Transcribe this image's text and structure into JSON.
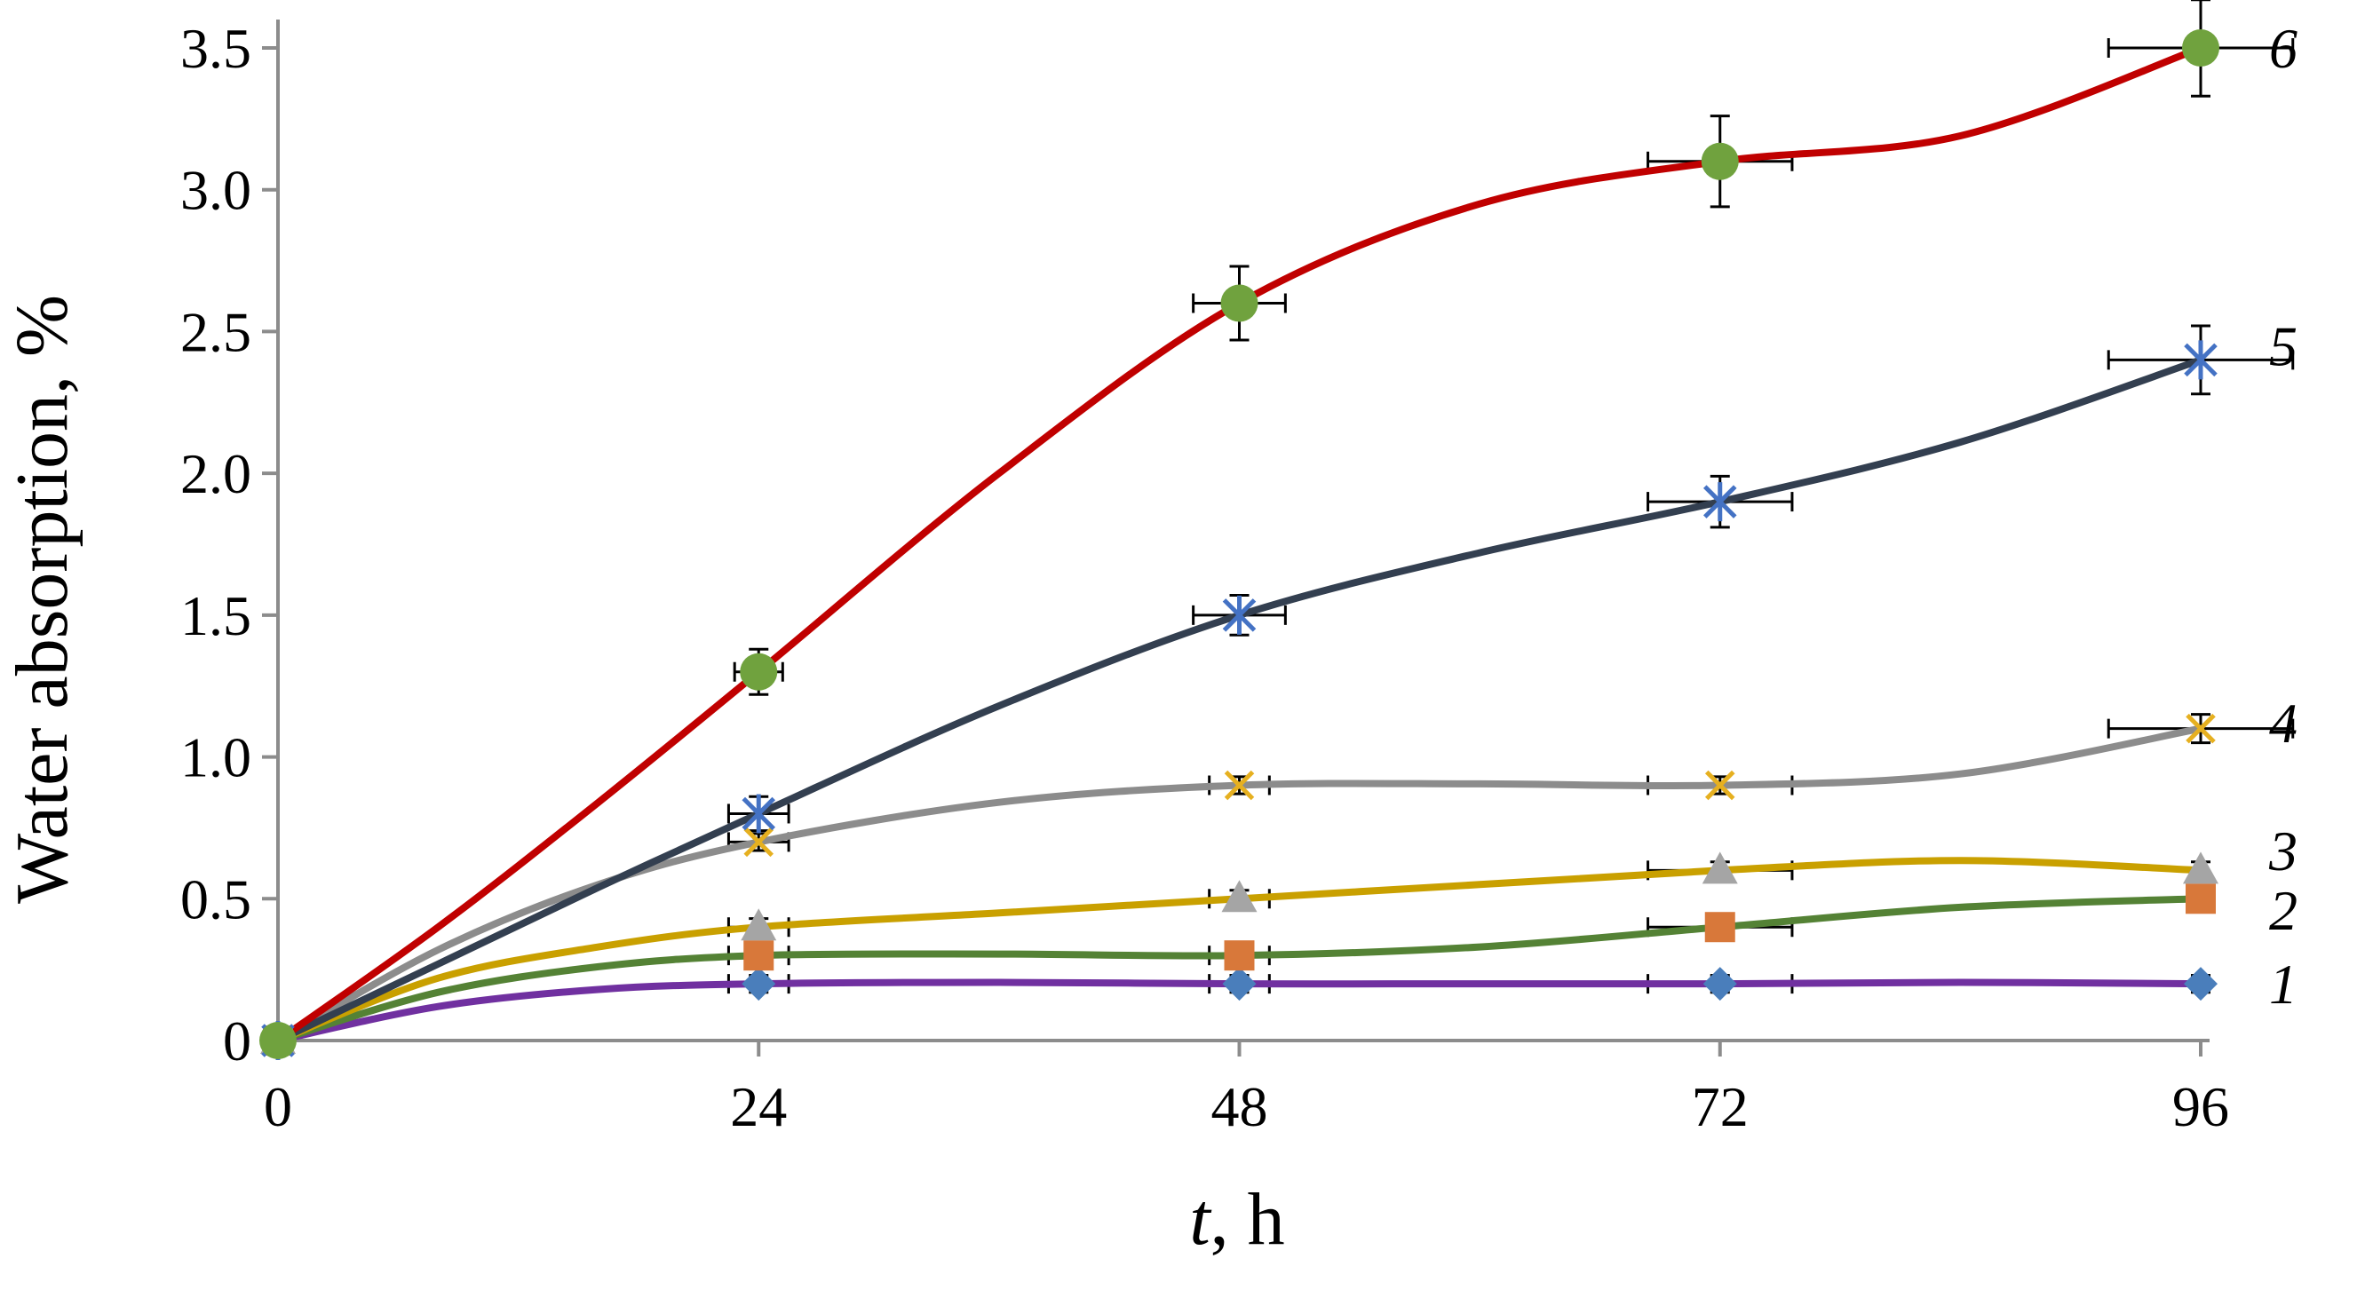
{
  "chart_data": {
    "type": "line",
    "ylabel": "Water absorption, %",
    "xlabel_italic": "t",
    "xlabel_rest": ", h",
    "x": [
      0,
      24,
      48,
      72,
      96
    ],
    "x_tick_labels": [
      "0",
      "24",
      "48",
      "72",
      "96"
    ],
    "y_tick_labels": [
      "0",
      "0.5",
      "1.0",
      "1.5",
      "2.0",
      "2.5",
      "3.0",
      "3.5"
    ],
    "xlim": [
      0,
      96
    ],
    "ylim": [
      0,
      3.5
    ],
    "grid": false,
    "series": [
      {
        "name": "1",
        "values": [
          0,
          0.2,
          0.2,
          0.2,
          0.2
        ],
        "curve": [
          [
            0,
            0
          ],
          [
            8,
            0.12
          ],
          [
            16,
            0.18
          ],
          [
            24,
            0.2
          ],
          [
            36,
            0.205
          ],
          [
            48,
            0.2
          ],
          [
            60,
            0.2
          ],
          [
            72,
            0.2
          ],
          [
            84,
            0.205
          ],
          [
            96,
            0.2
          ]
        ],
        "y_err": [
          0,
          0.03,
          0.03,
          0.03,
          0.03
        ],
        "x_err": [
          0,
          1.5,
          1.5,
          3.6,
          0
        ],
        "marker": "diamond",
        "marker_color": "#4a7ebb",
        "line_color": "#7030a0"
      },
      {
        "name": "2",
        "values": [
          0,
          0.3,
          0.3,
          0.4,
          0.5
        ],
        "curve": [
          [
            0,
            0
          ],
          [
            8,
            0.17
          ],
          [
            16,
            0.26
          ],
          [
            24,
            0.3
          ],
          [
            36,
            0.305
          ],
          [
            48,
            0.3
          ],
          [
            60,
            0.33
          ],
          [
            72,
            0.4
          ],
          [
            84,
            0.47
          ],
          [
            96,
            0.5
          ]
        ],
        "y_err": [
          0,
          0.03,
          0.03,
          0.03,
          0.03
        ],
        "x_err": [
          0,
          1.5,
          1.5,
          3.6,
          0
        ],
        "marker": "square",
        "marker_color": "#d8783a",
        "line_color": "#548235"
      },
      {
        "name": "3",
        "values": [
          0,
          0.4,
          0.5,
          0.6,
          0.6
        ],
        "curve": [
          [
            0,
            0
          ],
          [
            8,
            0.22
          ],
          [
            16,
            0.33
          ],
          [
            24,
            0.4
          ],
          [
            36,
            0.45
          ],
          [
            48,
            0.5
          ],
          [
            60,
            0.55
          ],
          [
            72,
            0.6
          ],
          [
            84,
            0.635
          ],
          [
            96,
            0.6
          ]
        ],
        "y_err": [
          0,
          0.03,
          0.03,
          0.03,
          0.03
        ],
        "x_err": [
          0,
          1.5,
          1.5,
          3.6,
          0
        ],
        "marker": "triangle",
        "marker_color": "#a5a5a5",
        "line_color": "#c9a000"
      },
      {
        "name": "4",
        "values": [
          0,
          0.7,
          0.9,
          0.9,
          1.1
        ],
        "curve": [
          [
            0,
            0
          ],
          [
            8,
            0.32
          ],
          [
            16,
            0.55
          ],
          [
            24,
            0.7
          ],
          [
            36,
            0.84
          ],
          [
            48,
            0.9
          ],
          [
            60,
            0.905
          ],
          [
            72,
            0.9
          ],
          [
            84,
            0.94
          ],
          [
            96,
            1.1
          ]
        ],
        "y_err": [
          0,
          0.03,
          0.03,
          0.03,
          0.05
        ],
        "x_err": [
          0,
          1.5,
          1.5,
          3.6,
          4.6
        ],
        "marker": "x",
        "marker_color": "#e6b020",
        "line_color": "#8c8c8c"
      },
      {
        "name": "5",
        "values": [
          0,
          0.8,
          1.5,
          1.9,
          2.4
        ],
        "curve": [
          [
            0,
            0
          ],
          [
            8,
            0.27
          ],
          [
            16,
            0.54
          ],
          [
            24,
            0.8
          ],
          [
            36,
            1.18
          ],
          [
            48,
            1.5
          ],
          [
            60,
            1.72
          ],
          [
            72,
            1.9
          ],
          [
            84,
            2.11
          ],
          [
            96,
            2.4
          ]
        ],
        "y_err": [
          0,
          0.06,
          0.07,
          0.09,
          0.12
        ],
        "x_err": [
          0,
          1.5,
          2.3,
          3.6,
          4.6
        ],
        "marker": "star",
        "marker_color": "#4472c4",
        "line_color": "#333f50"
      },
      {
        "name": "6",
        "values": [
          0,
          1.3,
          2.6,
          3.1,
          3.5
        ],
        "curve": [
          [
            0,
            0
          ],
          [
            8,
            0.4
          ],
          [
            16,
            0.84
          ],
          [
            24,
            1.3
          ],
          [
            36,
            2.0
          ],
          [
            48,
            2.6
          ],
          [
            60,
            2.95
          ],
          [
            72,
            3.1
          ],
          [
            84,
            3.19
          ],
          [
            96,
            3.5
          ]
        ],
        "y_err": [
          0,
          0.08,
          0.13,
          0.16,
          0.17
        ],
        "x_err": [
          0,
          1.2,
          2.3,
          3.6,
          4.6
        ],
        "marker": "circle",
        "marker_color": "#70a23e",
        "line_color": "#c00000"
      }
    ]
  }
}
